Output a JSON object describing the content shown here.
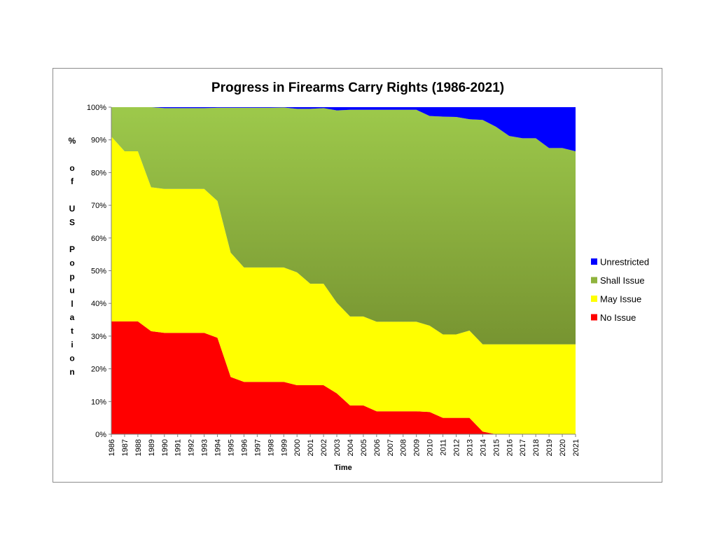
{
  "chart_data": {
    "type": "area",
    "stacked": true,
    "title": "Progress in Firearms Carry Rights (1986-2021)",
    "xlabel": "Time",
    "ylabel": "% of US Population",
    "ylim": [
      0,
      100
    ],
    "yticks": [
      "0%",
      "10%",
      "20%",
      "30%",
      "40%",
      "50%",
      "60%",
      "70%",
      "80%",
      "90%",
      "100%"
    ],
    "categories": [
      "1986",
      "1987",
      "1988",
      "1989",
      "1990",
      "1991",
      "1992",
      "1993",
      "1994",
      "1995",
      "1996",
      "1997",
      "1998",
      "1999",
      "2000",
      "2001",
      "2002",
      "2003",
      "2004",
      "2005",
      "2006",
      "2007",
      "2008",
      "2009",
      "2010",
      "2011",
      "2012",
      "2013",
      "2014",
      "2015",
      "2016",
      "2017",
      "2018",
      "2019",
      "2020",
      "2021"
    ],
    "legend_position": "right",
    "series": [
      {
        "name": "No Issue",
        "color": "#ff0000",
        "values": [
          34.5,
          34.5,
          34.5,
          31.5,
          31,
          31,
          31,
          31,
          29.5,
          17.5,
          16,
          16,
          16,
          16,
          15,
          15,
          15,
          12.5,
          8.8,
          8.8,
          7,
          7,
          7,
          7,
          6.8,
          5,
          5,
          5,
          0.8,
          0,
          0,
          0,
          0,
          0,
          0,
          0
        ]
      },
      {
        "name": "May Issue",
        "color": "#ffff00",
        "values": [
          56.5,
          52,
          52,
          44,
          44,
          44,
          44,
          44,
          41.8,
          38,
          35,
          35,
          35,
          35,
          34.5,
          31,
          31,
          27.7,
          27.2,
          27.2,
          27.4,
          27.4,
          27.4,
          27.4,
          26.4,
          25.5,
          25.5,
          26.7,
          26.7,
          27.5,
          27.5,
          27.5,
          27.5,
          27.5,
          27.5,
          27.5
        ]
      },
      {
        "name": "Shall Issue",
        "color": "#8fb33d",
        "values": [
          9,
          13.5,
          13.5,
          24.5,
          24.7,
          24.7,
          24.7,
          24.7,
          28.5,
          44.3,
          48.8,
          48.8,
          48.8,
          48.9,
          50,
          53.5,
          53.7,
          58.8,
          63.2,
          63.2,
          64.8,
          64.8,
          64.8,
          64.8,
          64.1,
          66.6,
          66.5,
          64.6,
          68.6,
          66.5,
          63.7,
          63,
          63,
          60,
          60,
          59
        ]
      },
      {
        "name": "Unrestricted",
        "color": "#0000ff",
        "values": [
          0,
          0,
          0,
          0,
          0.3,
          0.3,
          0.3,
          0.3,
          0.2,
          0.2,
          0.2,
          0.2,
          0.2,
          0.1,
          0.5,
          0.5,
          0.3,
          1,
          0.8,
          0.8,
          0.8,
          0.8,
          0.8,
          0.8,
          2.7,
          2.9,
          3,
          3.7,
          3.9,
          6,
          8.8,
          9.5,
          9.5,
          12.5,
          12.5,
          13.5
        ]
      }
    ],
    "legend_order": [
      "Unrestricted",
      "Shall Issue",
      "May Issue",
      "No Issue"
    ]
  }
}
